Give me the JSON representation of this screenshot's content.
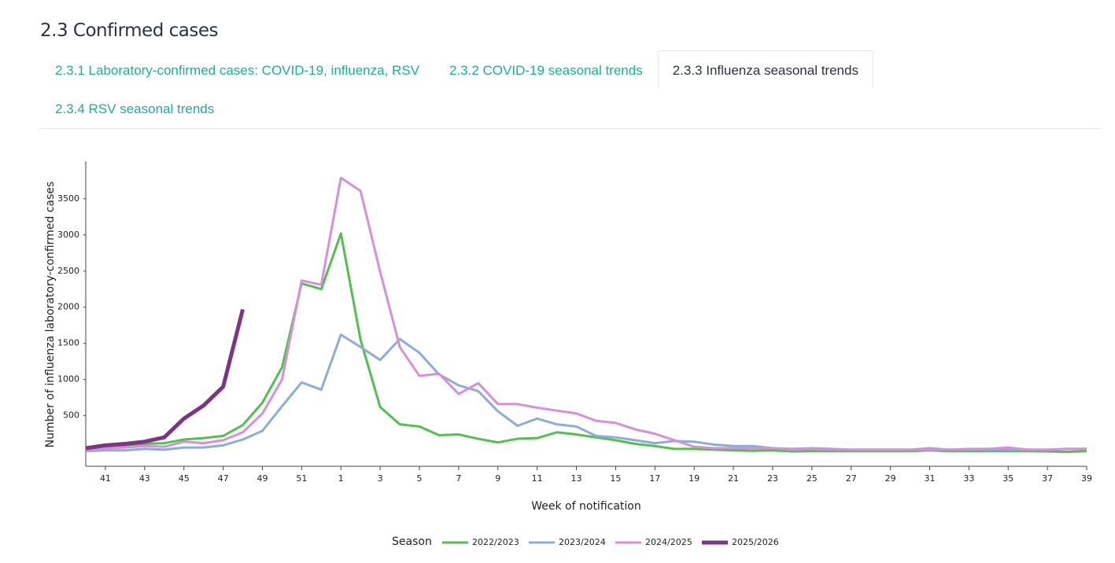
{
  "header": {
    "title": "2.3 Confirmed cases"
  },
  "tabs": [
    {
      "label": "2.3.1 Laboratory-confirmed cases: COVID-19, influenza, RSV",
      "active": false
    },
    {
      "label": "2.3.2 COVID-19 seasonal trends",
      "active": false
    },
    {
      "label": "2.3.3 Influenza seasonal trends",
      "active": true
    },
    {
      "label": "2.3.4 RSV seasonal trends",
      "active": false
    }
  ],
  "chart_data": {
    "type": "line",
    "xlabel": "Week of notification",
    "ylabel": "Number of influenza laboratory-confirmed cases",
    "legend_title": "Season",
    "categories": [
      null,
      41,
      null,
      43,
      null,
      45,
      null,
      47,
      null,
      49,
      null,
      51,
      null,
      1,
      null,
      3,
      null,
      5,
      null,
      7,
      null,
      9,
      null,
      11,
      null,
      13,
      null,
      15,
      null,
      17,
      null,
      19,
      null,
      21,
      null,
      23,
      null,
      25,
      null,
      27,
      null,
      29,
      null,
      31,
      null,
      33,
      null,
      35,
      null,
      37,
      null,
      39
    ],
    "ylim": [
      -200,
      4020
    ],
    "yticks": [
      500,
      1000,
      1500,
      2000,
      2500,
      3000,
      3500
    ],
    "series": [
      {
        "name": "2022/2023",
        "color": "#52bf4f",
        "width": 3,
        "values": [
          40,
          70,
          90,
          110,
          120,
          170,
          190,
          220,
          370,
          680,
          1170,
          2330,
          2250,
          3020,
          1550,
          620,
          380,
          350,
          230,
          240,
          180,
          130,
          180,
          190,
          270,
          240,
          200,
          160,
          110,
          80,
          40,
          40,
          30,
          20,
          15,
          20,
          5,
          10,
          10,
          10,
          10,
          10,
          10,
          20,
          10,
          10,
          10,
          10,
          10,
          5,
          0,
          10
        ]
      },
      {
        "name": "2023/2024",
        "color": "#8eadd6",
        "width": 3,
        "values": [
          10,
          20,
          20,
          40,
          30,
          60,
          60,
          90,
          170,
          290,
          630,
          960,
          860,
          1620,
          1450,
          1270,
          1560,
          1370,
          1070,
          920,
          840,
          560,
          360,
          460,
          380,
          350,
          220,
          200,
          160,
          120,
          150,
          140,
          100,
          80,
          80,
          50,
          40,
          50,
          40,
          30,
          30,
          30,
          30,
          50,
          30,
          30,
          30,
          30,
          30,
          30,
          40,
          40
        ]
      },
      {
        "name": "2024/2025",
        "color": "#d590d8",
        "width": 3,
        "values": [
          30,
          50,
          60,
          80,
          70,
          140,
          120,
          160,
          270,
          530,
          1000,
          2370,
          2310,
          3790,
          3610,
          2490,
          1450,
          1050,
          1080,
          800,
          950,
          660,
          660,
          610,
          570,
          530,
          430,
          400,
          310,
          250,
          160,
          70,
          50,
          50,
          50,
          50,
          30,
          40,
          30,
          30,
          30,
          30,
          30,
          30,
          30,
          40,
          40,
          60,
          30,
          30,
          40,
          40
        ]
      },
      {
        "name": "2025/2026",
        "color": "#7d3482",
        "width": 5,
        "values": [
          50,
          90,
          110,
          140,
          200,
          460,
          640,
          900,
          1970,
          null,
          null,
          null,
          null,
          null,
          null,
          null,
          null,
          null,
          null,
          null,
          null,
          null,
          null,
          null,
          null,
          null,
          null,
          null,
          null,
          null,
          null,
          null,
          null,
          null,
          null,
          null,
          null,
          null,
          null,
          null,
          null,
          null,
          null,
          null,
          null,
          null,
          null,
          null,
          null,
          null,
          null,
          null
        ]
      }
    ]
  }
}
